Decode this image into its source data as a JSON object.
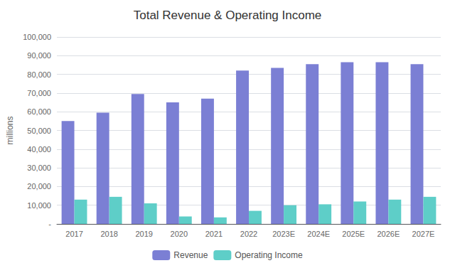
{
  "chart_data": {
    "type": "bar",
    "title": "Total Revenue & Operating Income",
    "ylabel": "millions",
    "categories": [
      "2017",
      "2018",
      "2019",
      "2020",
      "2021",
      "2022",
      "2023E",
      "2024E",
      "2025E",
      "2026E",
      "2027E"
    ],
    "series": [
      {
        "name": "Revenue",
        "color": "#7B7FD4",
        "values": [
          55000,
          59500,
          69500,
          65000,
          67000,
          82000,
          83500,
          85500,
          86500,
          86500,
          85500
        ]
      },
      {
        "name": "Operating Income",
        "color": "#5ECEC8",
        "values": [
          13000,
          14500,
          11000,
          4000,
          3500,
          7000,
          10000,
          10500,
          12000,
          13000,
          14500
        ]
      }
    ],
    "ylim": [
      0,
      100000
    ],
    "yticks": [
      {
        "value": 0,
        "label": "-"
      },
      {
        "value": 10000,
        "label": "10,000"
      },
      {
        "value": 20000,
        "label": "20,000"
      },
      {
        "value": 30000,
        "label": "30,000"
      },
      {
        "value": 40000,
        "label": "40,000"
      },
      {
        "value": 50000,
        "label": "50,000"
      },
      {
        "value": 60000,
        "label": "60,000"
      },
      {
        "value": 70000,
        "label": "70,000"
      },
      {
        "value": 80000,
        "label": "80,000"
      },
      {
        "value": 90000,
        "label": "90,000"
      },
      {
        "value": 100000,
        "label": "100,000"
      }
    ],
    "grid": true,
    "legend": "bottom"
  }
}
